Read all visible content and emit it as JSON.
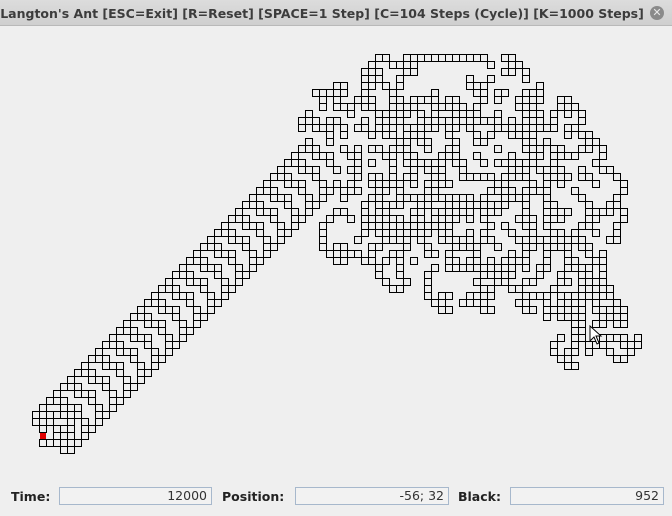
{
  "window": {
    "title": "Langton's Ant [ESC=Exit]   [R=Reset]   [SPACE=1 Step]   [C=104 Steps (Cycle)]   [K=1000 Steps]",
    "close_icon": "close-icon"
  },
  "status": {
    "time_label": "Time:",
    "time_value": "12000",
    "position_label": "Position:",
    "position_value": "-56; 32",
    "black_label": "Black:",
    "black_value": "952"
  },
  "colors": {
    "background": "#efefef",
    "cell_border": "#000000",
    "ant": "#e00000"
  }
}
